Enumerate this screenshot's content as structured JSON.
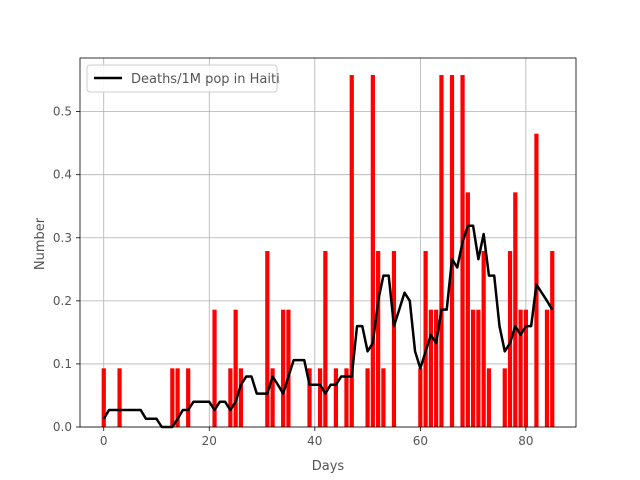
{
  "chart_data": {
    "type": "bar",
    "xlabel": "Days",
    "ylabel": "Number",
    "xlim": [
      -4.5,
      89.5
    ],
    "ylim": [
      0,
      0.585
    ],
    "xticks": [
      0,
      20,
      40,
      60,
      80
    ],
    "yticks": [
      0.0,
      0.1,
      0.2,
      0.3,
      0.4,
      0.5
    ],
    "grid": true,
    "legend": {
      "placement": "top-left"
    },
    "colors": {
      "bar": "#ff0000",
      "line": "#000000",
      "grid": "#b0b0b0"
    },
    "x": [
      0,
      1,
      2,
      3,
      4,
      5,
      6,
      7,
      8,
      9,
      10,
      11,
      12,
      13,
      14,
      15,
      16,
      17,
      18,
      19,
      20,
      21,
      22,
      23,
      24,
      25,
      26,
      27,
      28,
      29,
      30,
      31,
      32,
      33,
      34,
      35,
      36,
      37,
      38,
      39,
      40,
      41,
      42,
      43,
      44,
      45,
      46,
      47,
      48,
      49,
      50,
      51,
      52,
      53,
      54,
      55,
      56,
      57,
      58,
      59,
      60,
      61,
      62,
      63,
      64,
      65,
      66,
      67,
      68,
      69,
      70,
      71,
      72,
      73,
      74,
      75,
      76,
      77,
      78,
      79,
      80,
      81,
      82,
      83,
      84,
      85
    ],
    "series": [
      {
        "kind": "bar",
        "values": [
          0.093,
          0,
          0,
          0.093,
          0,
          0,
          0,
          0,
          0,
          0,
          0,
          0,
          0,
          0.093,
          0.093,
          0,
          0.093,
          0,
          0,
          0,
          0,
          0.186,
          0,
          0,
          0.093,
          0.186,
          0.093,
          0,
          0,
          0,
          0,
          0.279,
          0.093,
          0,
          0.186,
          0.186,
          0,
          0,
          0,
          0.093,
          0,
          0.093,
          0.279,
          0,
          0.093,
          0,
          0.093,
          0.558,
          0,
          0,
          0.093,
          0.558,
          0.279,
          0.093,
          0,
          0.279,
          0,
          0,
          0,
          0,
          0.093,
          0.279,
          0.186,
          0.186,
          0.558,
          0,
          0.558,
          0,
          0.558,
          0.372,
          0.186,
          0.186,
          0.279,
          0.093,
          0,
          0,
          0.093,
          0.279,
          0.372,
          0.186,
          0.186,
          0,
          0.465,
          0,
          0.186,
          0.279
        ]
      },
      {
        "kind": "line",
        "name": "Deaths/1M pop in Haiti",
        "values": [
          0.013,
          0.027,
          0.027,
          0.027,
          0.027,
          0.027,
          0.027,
          0.027,
          0.013,
          0.013,
          0.013,
          0,
          0,
          0,
          0.013,
          0.027,
          0.027,
          0.04,
          0.04,
          0.04,
          0.04,
          0.027,
          0.04,
          0.04,
          0.027,
          0.04,
          0.067,
          0.08,
          0.08,
          0.053,
          0.053,
          0.053,
          0.08,
          0.067,
          0.053,
          0.08,
          0.106,
          0.106,
          0.106,
          0.067,
          0.067,
          0.067,
          0.053,
          0.067,
          0.067,
          0.08,
          0.08,
          0.08,
          0.16,
          0.16,
          0.12,
          0.133,
          0.2,
          0.24,
          0.24,
          0.16,
          0.186,
          0.213,
          0.2,
          0.12,
          0.093,
          0.12,
          0.146,
          0.133,
          0.186,
          0.186,
          0.266,
          0.253,
          0.293,
          0.319,
          0.319,
          0.266,
          0.306,
          0.24,
          0.24,
          0.16,
          0.12,
          0.133,
          0.16,
          0.146,
          0.16,
          0.16,
          0.226,
          0.213,
          0.2,
          0.186
        ]
      }
    ]
  }
}
